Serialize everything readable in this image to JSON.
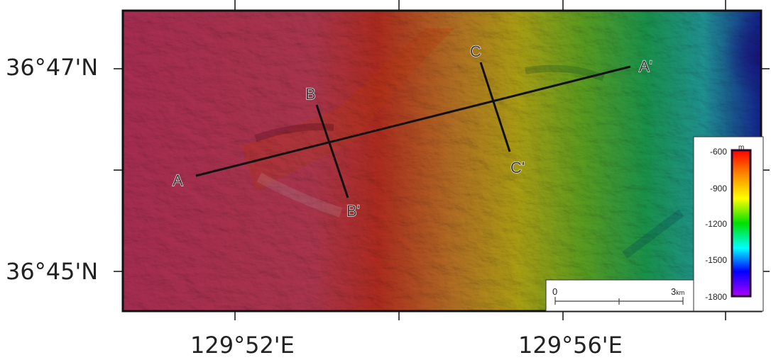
{
  "axes": {
    "lat_labels": [
      "36°47'N",
      "36°45'N"
    ],
    "lon_labels": [
      "129°52'E",
      "129°56'E"
    ]
  },
  "profiles": [
    {
      "start": "A",
      "end": "A'"
    },
    {
      "start": "B",
      "end": "B'"
    },
    {
      "start": "C",
      "end": "C'"
    }
  ],
  "scale_bar": {
    "start": "0",
    "end": "3",
    "unit": "km"
  },
  "legend": {
    "unit": "m",
    "ticks": [
      "-600",
      "-900",
      "-1200",
      "-1500",
      "-1800"
    ],
    "min": -1800,
    "max": -600,
    "colors": [
      "#ff0000",
      "#ff8c00",
      "#ffff00",
      "#00e000",
      "#00ffff",
      "#0000ff",
      "#b000ff"
    ]
  },
  "colors": {
    "shallow": "#e8406a",
    "mid": "#f0c020",
    "deep": "#2040c0",
    "frame": "#111111"
  }
}
